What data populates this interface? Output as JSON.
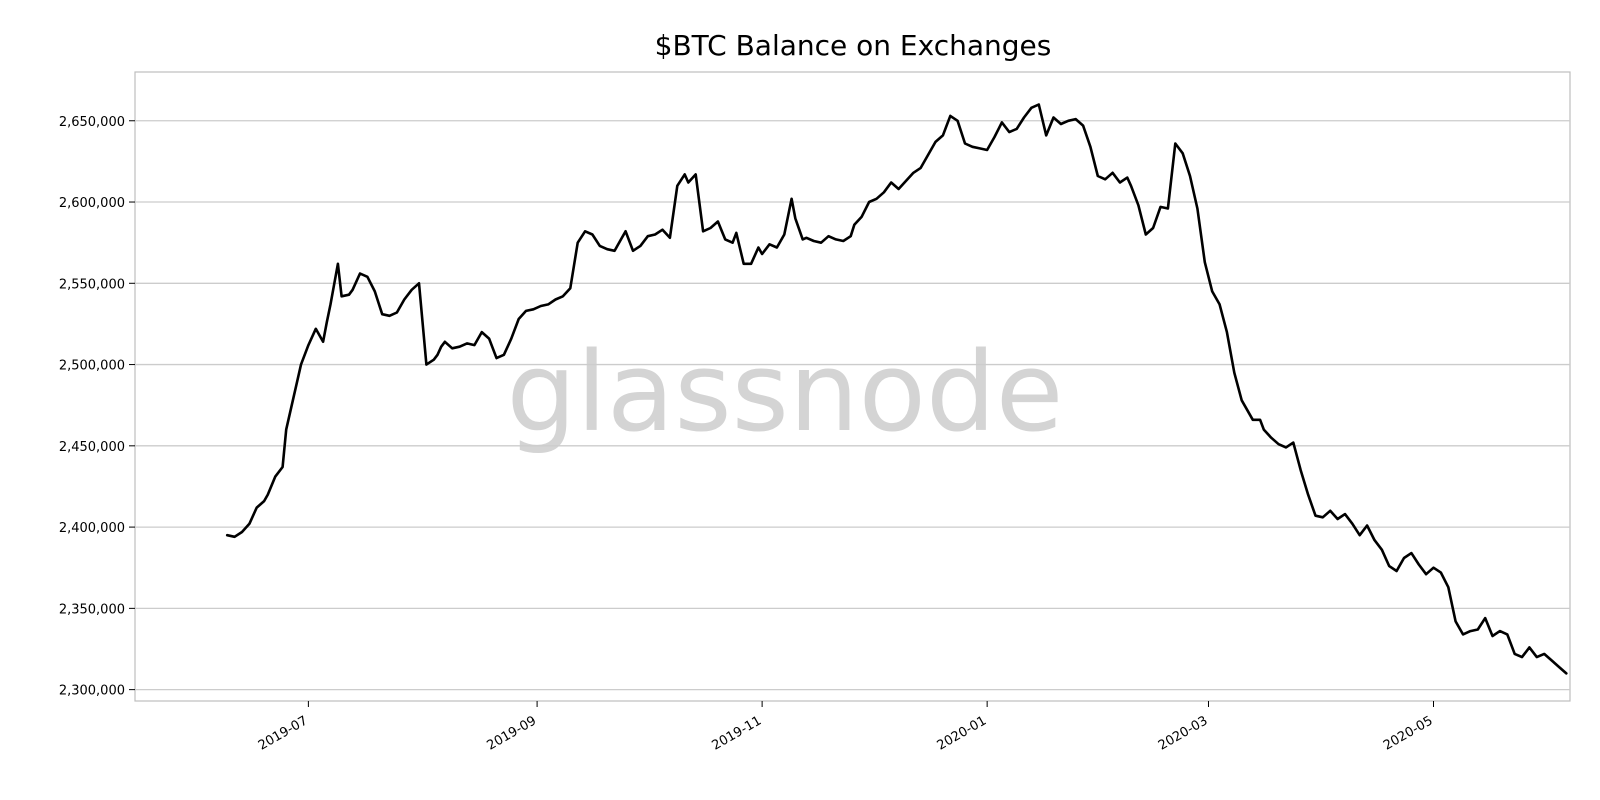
{
  "chart_data": {
    "type": "line",
    "title": "$BTC Balance on Exchanges",
    "xlabel": "",
    "ylabel": "",
    "watermark": "glassnode",
    "grid": "horizontal",
    "legend": "none",
    "line_color": "#000000",
    "grid_color": "#cccccc",
    "xlim": [
      "2019-05-15",
      "2020-06-07"
    ],
    "ylim": [
      2293000,
      2680000
    ],
    "yticks": [
      2300000,
      2350000,
      2400000,
      2450000,
      2500000,
      2550000,
      2600000,
      2650000
    ],
    "ytick_labels": [
      "2,300,000",
      "2,350,000",
      "2,400,000",
      "2,450,000",
      "2,500,000",
      "2,550,000",
      "2,600,000",
      "2,650,000"
    ],
    "xticks": [
      "2019-07-01",
      "2019-09-01",
      "2019-11-01",
      "2020-01-01",
      "2020-03-01",
      "2020-05-01"
    ],
    "xtick_labels": [
      "2019-07",
      "2019-09",
      "2019-11",
      "2020-01",
      "2020-03",
      "2020-05"
    ],
    "series": [
      {
        "x": [
          "2019-06-09",
          "2019-06-11",
          "2019-06-13",
          "2019-06-15",
          "2019-06-17",
          "2019-06-19",
          "2019-06-20",
          "2019-06-22",
          "2019-06-24",
          "2019-06-25",
          "2019-06-27",
          "2019-06-29",
          "2019-07-01",
          "2019-07-03",
          "2019-07-05",
          "2019-07-06",
          "2019-07-07",
          "2019-07-09",
          "2019-07-10",
          "2019-07-12",
          "2019-07-13",
          "2019-07-15",
          "2019-07-17",
          "2019-07-19",
          "2019-07-21",
          "2019-07-23",
          "2019-07-25",
          "2019-07-27",
          "2019-07-29",
          "2019-07-31",
          "2019-08-02",
          "2019-08-04",
          "2019-08-05",
          "2019-08-06",
          "2019-08-07",
          "2019-08-09",
          "2019-08-11",
          "2019-08-13",
          "2019-08-15",
          "2019-08-17",
          "2019-08-19",
          "2019-08-21",
          "2019-08-23",
          "2019-08-25",
          "2019-08-27",
          "2019-08-29",
          "2019-08-31",
          "2019-09-02",
          "2019-09-04",
          "2019-09-06",
          "2019-09-08",
          "2019-09-10",
          "2019-09-12",
          "2019-09-14",
          "2019-09-16",
          "2019-09-18",
          "2019-09-20",
          "2019-09-22",
          "2019-09-24",
          "2019-09-25",
          "2019-09-27",
          "2019-09-29",
          "2019-10-01",
          "2019-10-03",
          "2019-10-05",
          "2019-10-07",
          "2019-10-09",
          "2019-10-11",
          "2019-10-12",
          "2019-10-14",
          "2019-10-16",
          "2019-10-18",
          "2019-10-20",
          "2019-10-22",
          "2019-10-24",
          "2019-10-25",
          "2019-10-27",
          "2019-10-29",
          "2019-10-31",
          "2019-11-01",
          "2019-11-03",
          "2019-11-05",
          "2019-11-07",
          "2019-11-09",
          "2019-11-10",
          "2019-11-12",
          "2019-11-13",
          "2019-11-15",
          "2019-11-17",
          "2019-11-19",
          "2019-11-21",
          "2019-11-23",
          "2019-11-25",
          "2019-11-26",
          "2019-11-28",
          "2019-11-30",
          "2019-12-02",
          "2019-12-04",
          "2019-12-06",
          "2019-12-08",
          "2019-12-10",
          "2019-12-12",
          "2019-12-14",
          "2019-12-16",
          "2019-12-18",
          "2019-12-20",
          "2019-12-22",
          "2019-12-24",
          "2019-12-26",
          "2019-12-28",
          "2019-12-30",
          "2020-01-01",
          "2020-01-03",
          "2020-01-05",
          "2020-01-07",
          "2020-01-09",
          "2020-01-11",
          "2020-01-13",
          "2020-01-15",
          "2020-01-17",
          "2020-01-19",
          "2020-01-21",
          "2020-01-23",
          "2020-01-25",
          "2020-01-27",
          "2020-01-29",
          "2020-01-31",
          "2020-02-02",
          "2020-02-04",
          "2020-02-06",
          "2020-02-08",
          "2020-02-09",
          "2020-02-11",
          "2020-02-13",
          "2020-02-15",
          "2020-02-17",
          "2020-02-19",
          "2020-02-21",
          "2020-02-23",
          "2020-02-25",
          "2020-02-27",
          "2020-02-29",
          "2020-03-02",
          "2020-03-04",
          "2020-03-06",
          "2020-03-08",
          "2020-03-10",
          "2020-03-11",
          "2020-03-13",
          "2020-03-15",
          "2020-03-16",
          "2020-03-18",
          "2020-03-20",
          "2020-03-22",
          "2020-03-24",
          "2020-03-26",
          "2020-03-28",
          "2020-03-30",
          "2020-04-01",
          "2020-04-03",
          "2020-04-05",
          "2020-04-07",
          "2020-04-09",
          "2020-04-11",
          "2020-04-13",
          "2020-04-15",
          "2020-04-17",
          "2020-04-19",
          "2020-04-21",
          "2020-04-23",
          "2020-04-25",
          "2020-04-27",
          "2020-04-29",
          "2020-05-01",
          "2020-05-03",
          "2020-05-05",
          "2020-05-07",
          "2020-05-09",
          "2020-05-11",
          "2020-05-13",
          "2020-05-15",
          "2020-05-17",
          "2020-05-19",
          "2020-05-21",
          "2020-05-23",
          "2020-05-25",
          "2020-05-27",
          "2020-05-29",
          "2020-05-31",
          "2020-06-02",
          "2020-06-04",
          "2020-06-06"
        ],
        "y": [
          2395000,
          2394000,
          2397000,
          2402000,
          2412000,
          2416000,
          2420000,
          2431000,
          2437000,
          2460000,
          2480000,
          2500000,
          2512000,
          2522000,
          2514000,
          2526000,
          2537000,
          2562000,
          2542000,
          2543000,
          2546000,
          2556000,
          2554000,
          2545000,
          2531000,
          2530000,
          2532000,
          2540000,
          2546000,
          2550000,
          2500000,
          2503000,
          2506000,
          2511000,
          2514000,
          2510000,
          2511000,
          2513000,
          2512000,
          2520000,
          2516000,
          2504000,
          2506000,
          2516000,
          2528000,
          2533000,
          2534000,
          2536000,
          2537000,
          2540000,
          2542000,
          2547000,
          2575000,
          2582000,
          2580000,
          2573000,
          2571000,
          2570000,
          2578000,
          2582000,
          2570000,
          2573000,
          2579000,
          2580000,
          2583000,
          2578000,
          2610000,
          2617000,
          2612000,
          2617000,
          2582000,
          2584000,
          2588000,
          2577000,
          2575000,
          2581000,
          2562000,
          2562000,
          2572000,
          2568000,
          2574000,
          2572000,
          2580000,
          2602000,
          2590000,
          2577000,
          2578000,
          2576000,
          2575000,
          2579000,
          2577000,
          2576000,
          2579000,
          2586000,
          2591000,
          2600000,
          2602000,
          2606000,
          2612000,
          2608000,
          2613000,
          2618000,
          2621000,
          2629000,
          2637000,
          2641000,
          2653000,
          2650000,
          2636000,
          2634000,
          2633000,
          2632000,
          2640000,
          2649000,
          2643000,
          2645000,
          2652000,
          2658000,
          2660000,
          2641000,
          2652000,
          2648000,
          2650000,
          2651000,
          2647000,
          2634000,
          2616000,
          2614000,
          2618000,
          2612000,
          2615000,
          2610000,
          2598000,
          2580000,
          2584000,
          2597000,
          2596000,
          2636000,
          2630000,
          2616000,
          2596000,
          2563000,
          2545000,
          2537000,
          2520000,
          2495000,
          2478000,
          2474000,
          2466000,
          2466000,
          2460000,
          2455000,
          2451000,
          2449000,
          2452000,
          2435000,
          2420000,
          2407000,
          2406000,
          2410000,
          2405000,
          2408000,
          2402000,
          2395000,
          2401000,
          2392000,
          2386000,
          2376000,
          2373000,
          2381000,
          2384000,
          2377000,
          2371000,
          2375000,
          2372000,
          2363000,
          2342000,
          2334000,
          2336000,
          2337000,
          2344000,
          2333000,
          2336000,
          2334000,
          2322000,
          2320000,
          2326000,
          2320000,
          2322000,
          2318000,
          2314000,
          2310000
        ]
      }
    ]
  }
}
